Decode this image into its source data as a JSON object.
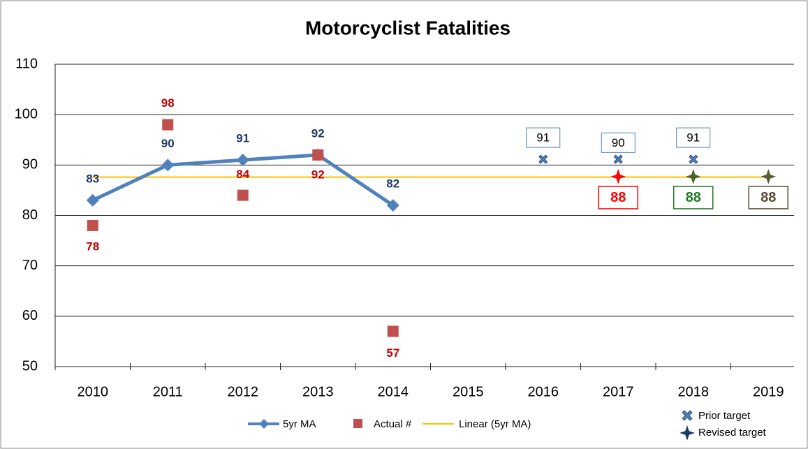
{
  "chart_data": {
    "type": "line",
    "title": "Motorcyclist Fatalities",
    "categories": [
      "2010",
      "2011",
      "2012",
      "2013",
      "2014",
      "2015",
      "2016",
      "2017",
      "2018",
      "2019"
    ],
    "ylim": [
      50,
      110
    ],
    "yticks": [
      50,
      60,
      70,
      80,
      90,
      100,
      110
    ],
    "grid": true,
    "series": [
      {
        "name": "5yr MA",
        "color": "#4f81bd",
        "label_color": "#1f3864",
        "values": [
          83,
          90,
          91,
          92,
          82,
          null,
          null,
          null,
          null,
          null
        ]
      },
      {
        "name": "Actual #",
        "color": "#c0504d",
        "label_color": "#c00000",
        "values": [
          78,
          98,
          84,
          92,
          57,
          null,
          null,
          null,
          null,
          null
        ]
      },
      {
        "name": "Linear (5yr MA)",
        "color": "#ffc000",
        "values": [
          87.6,
          87.6,
          87.6,
          87.6,
          87.6,
          87.6,
          87.6,
          87.6,
          87.6,
          87.6
        ]
      },
      {
        "name": "Prior target",
        "color": "#4f81bd",
        "values": [
          null,
          null,
          null,
          null,
          null,
          null,
          91,
          90,
          91,
          null
        ]
      },
      {
        "name": "Revised target",
        "colors": [
          null,
          null,
          null,
          null,
          null,
          null,
          null,
          "#ff0000",
          "#4f6228",
          "#5a5a32"
        ],
        "label_colors": [
          null,
          null,
          null,
          null,
          null,
          null,
          null,
          "#ff0000",
          "#1e7a1e",
          "#5a4a32"
        ],
        "values": [
          null,
          null,
          null,
          null,
          null,
          null,
          null,
          87.7,
          87.7,
          87.7
        ],
        "value_labels": [
          null,
          null,
          null,
          null,
          null,
          null,
          null,
          "88",
          "88",
          "88"
        ]
      }
    ]
  }
}
